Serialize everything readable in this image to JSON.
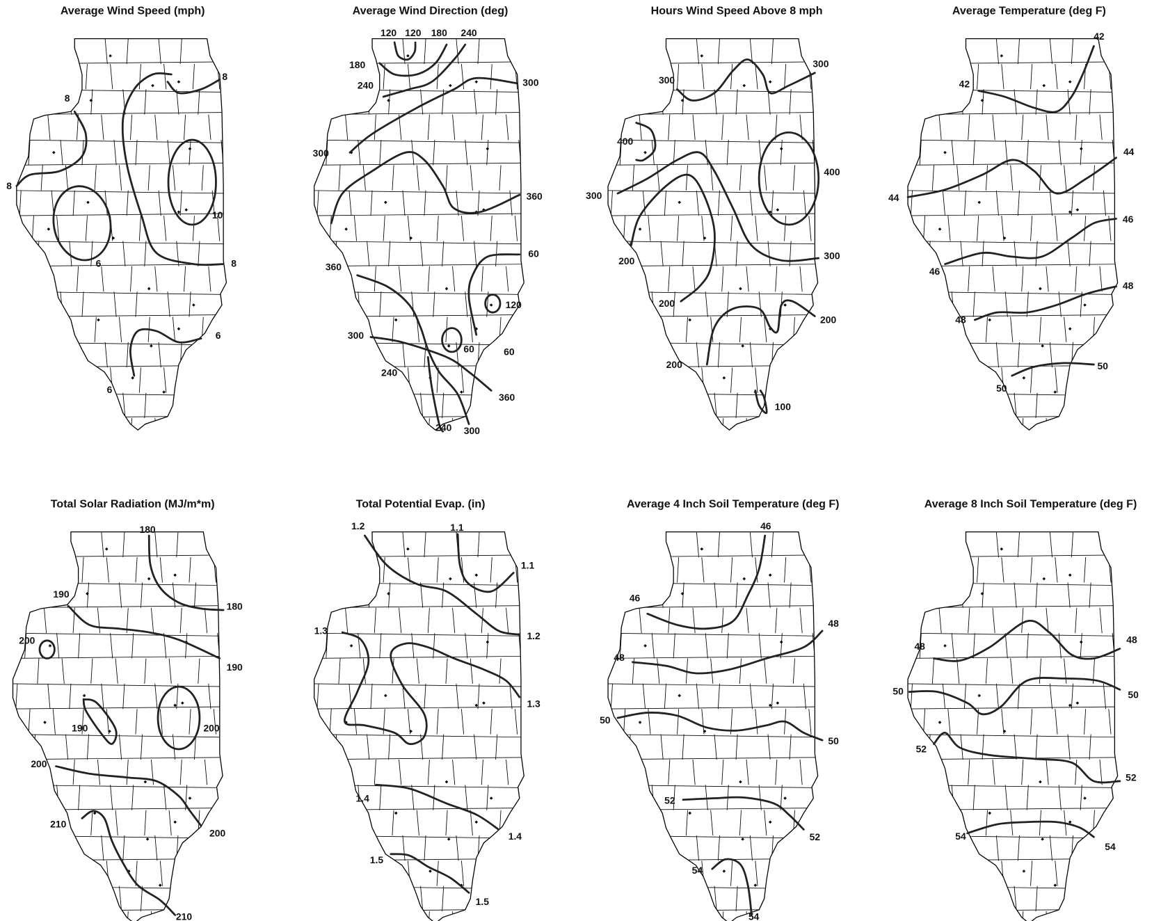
{
  "maps": [
    {
      "title": "Average Wind Speed (mph)",
      "labels": [
        8,
        8,
        8,
        10,
        6,
        8,
        6,
        6
      ]
    },
    {
      "title": "Average Wind Direction (deg)",
      "labels": [
        120,
        120,
        180,
        240,
        180,
        240,
        300,
        300,
        360,
        60,
        360,
        120,
        300,
        60,
        60,
        240,
        360,
        240,
        300
      ]
    },
    {
      "title": "Hours Wind Speed Above 8 mph",
      "labels": [
        300,
        300,
        400,
        400,
        300,
        300,
        200,
        200,
        200,
        200,
        100
      ]
    },
    {
      "title": "Average Temperature (deg F)",
      "labels": [
        42,
        42,
        44,
        44,
        46,
        46,
        48,
        48,
        50,
        50
      ]
    },
    {
      "title": "Total Solar Radiation (MJ/m*m)",
      "labels": [
        180,
        190,
        180,
        200,
        190,
        190,
        200,
        200,
        210,
        200,
        210
      ]
    },
    {
      "title": "Total Potential Evap. (in)",
      "labels": [
        1.2,
        1.1,
        1.1,
        1.3,
        1.2,
        1.3,
        1.4,
        1.4,
        1.5,
        1.5
      ]
    },
    {
      "title": "Average 4 Inch Soil Temperature (deg F)",
      "labels": [
        46,
        46,
        48,
        48,
        50,
        50,
        52,
        52,
        54,
        54
      ]
    },
    {
      "title": "Average 8 Inch Soil Temperature (deg F)",
      "labels": [
        48,
        48,
        50,
        50,
        52,
        52,
        54,
        54
      ]
    }
  ]
}
